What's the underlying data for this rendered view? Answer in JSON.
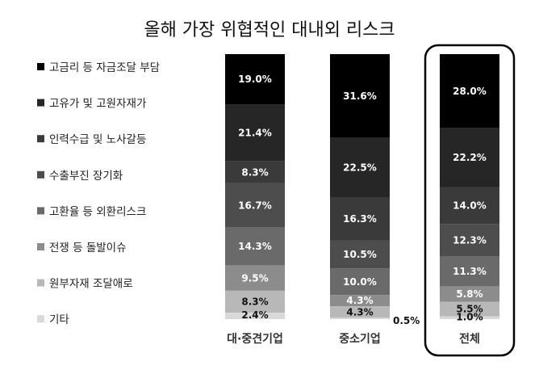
{
  "chart_data": {
    "type": "bar",
    "stacked": true,
    "title": "올해 가장 위협적인 대내외 리스크",
    "categories": [
      "대·중견기업",
      "중소기업",
      "전체"
    ],
    "highlighted_category": "전체",
    "legend_position": "left",
    "grid": false,
    "ylim": [
      0,
      100
    ],
    "series": [
      {
        "name": "고금리 등 자금조달 부담",
        "color": "#000000",
        "values": [
          19.0,
          31.6,
          28.0
        ],
        "labels": [
          "19.0%",
          "31.6%",
          "28.0%"
        ]
      },
      {
        "name": "고유가 및 고원자재가",
        "color": "#262626",
        "values": [
          21.4,
          22.5,
          22.2
        ],
        "labels": [
          "21.4%",
          "22.5%",
          "22.2%"
        ]
      },
      {
        "name": "인력수급 및 노사갈등",
        "color": "#3a3a3a",
        "values": [
          8.3,
          16.3,
          14.0
        ],
        "labels": [
          "8.3%",
          "16.3%",
          "14.0%"
        ]
      },
      {
        "name": "수출부진 장기화",
        "color": "#4d4d4d",
        "values": [
          16.7,
          10.5,
          12.3
        ],
        "labels": [
          "16.7%",
          "10.5%",
          "12.3%"
        ]
      },
      {
        "name": "고환율 등 외환리스크",
        "color": "#6a6a6a",
        "values": [
          14.3,
          10.0,
          11.3
        ],
        "labels": [
          "14.3%",
          "10.0%",
          "11.3%"
        ]
      },
      {
        "name": "전쟁 등 돌발이슈",
        "color": "#8c8c8c",
        "values": [
          9.5,
          4.3,
          5.8
        ],
        "labels": [
          "9.5%",
          "4.3%",
          "5.8%"
        ]
      },
      {
        "name": "원부자재 조달애로",
        "color": "#b8b8b8",
        "values": [
          8.3,
          4.3,
          5.5
        ],
        "labels": [
          "8.3%",
          "4.3%",
          "5.5%"
        ]
      },
      {
        "name": "기타",
        "color": "#d9d9d9",
        "values": [
          2.4,
          0.5,
          1.0
        ],
        "labels": [
          "2.4%",
          "0.5%",
          "1.0%"
        ]
      }
    ]
  }
}
